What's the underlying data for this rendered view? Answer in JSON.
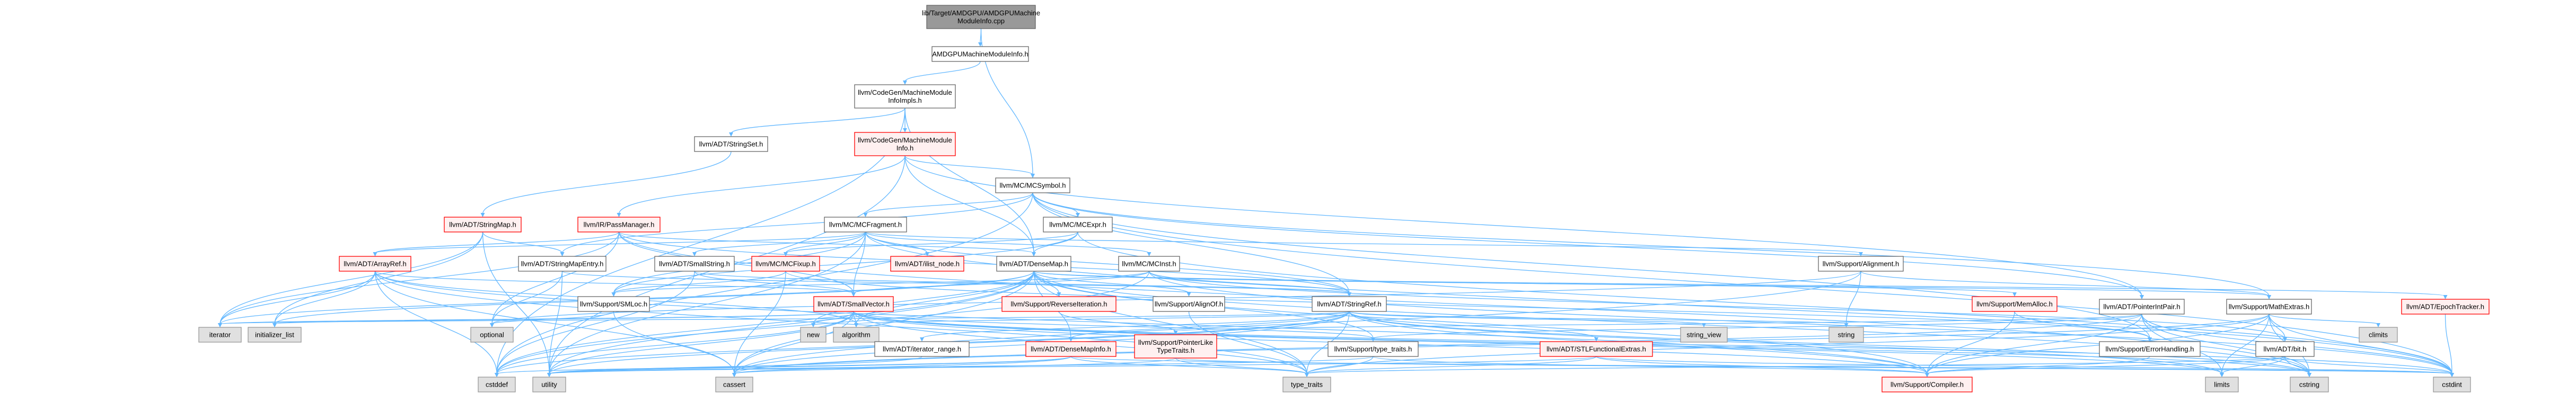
{
  "colors": {
    "edge": "#63b8ff",
    "node_fill": "#ffffff",
    "node_stroke": "#666666",
    "focus_fill": "#999999",
    "red_fill": "#fff0f0",
    "red_stroke": "#ff0000",
    "gray_fill": "#e0e0e0",
    "gray_stroke": "#999999"
  },
  "nodes": [
    {
      "id": "root",
      "lines": [
        "lib/Target/AMDGPU/AMDGPUMachine",
        "ModuleInfo.cpp"
      ],
      "style": "focus"
    },
    {
      "id": "amdgpu_mmi_h",
      "lines": [
        "AMDGPUMachineModuleInfo.h"
      ],
      "style": "normal"
    },
    {
      "id": "mmi_impls",
      "lines": [
        "llvm/CodeGen/MachineModule",
        "InfoImpls.h"
      ],
      "style": "normal"
    },
    {
      "id": "stringset",
      "lines": [
        "llvm/ADT/StringSet.h"
      ],
      "style": "normal"
    },
    {
      "id": "mmi_h",
      "lines": [
        "llvm/CodeGen/MachineModule",
        "Info.h"
      ],
      "style": "red"
    },
    {
      "id": "mcsymbol",
      "lines": [
        "llvm/MC/MCSymbol.h"
      ],
      "style": "normal"
    },
    {
      "id": "stringmap",
      "lines": [
        "llvm/ADT/StringMap.h"
      ],
      "style": "red"
    },
    {
      "id": "passmanager",
      "lines": [
        "llvm/IR/PassManager.h"
      ],
      "style": "red"
    },
    {
      "id": "mcfragment",
      "lines": [
        "llvm/MC/MCFragment.h"
      ],
      "style": "normal"
    },
    {
      "id": "mcexpr",
      "lines": [
        "llvm/MC/MCExpr.h"
      ],
      "style": "normal"
    },
    {
      "id": "arrayref",
      "lines": [
        "llvm/ADT/ArrayRef.h"
      ],
      "style": "red"
    },
    {
      "id": "stringmapentry",
      "lines": [
        "llvm/ADT/StringMapEntry.h"
      ],
      "style": "normal"
    },
    {
      "id": "smallstring",
      "lines": [
        "llvm/ADT/SmallString.h"
      ],
      "style": "normal"
    },
    {
      "id": "mcfixup",
      "lines": [
        "llvm/MC/MCFixup.h"
      ],
      "style": "red"
    },
    {
      "id": "ilist_node",
      "lines": [
        "llvm/ADT/ilist_node.h"
      ],
      "style": "red"
    },
    {
      "id": "densemap",
      "lines": [
        "llvm/ADT/DenseMap.h"
      ],
      "style": "normal"
    },
    {
      "id": "mcinst",
      "lines": [
        "llvm/MC/MCInst.h"
      ],
      "style": "normal"
    },
    {
      "id": "alignment",
      "lines": [
        "llvm/Support/Alignment.h"
      ],
      "style": "normal"
    },
    {
      "id": "pointerintpair",
      "lines": [
        "llvm/ADT/PointerIntPair.h"
      ],
      "style": "normal"
    },
    {
      "id": "mathextras",
      "lines": [
        "llvm/Support/MathExtras.h"
      ],
      "style": "normal"
    },
    {
      "id": "epochtracker",
      "lines": [
        "llvm/ADT/EpochTracker.h"
      ],
      "style": "red"
    },
    {
      "id": "smloc",
      "lines": [
        "llvm/Support/SMLoc.h"
      ],
      "style": "normal"
    },
    {
      "id": "smallvector",
      "lines": [
        "llvm/ADT/SmallVector.h"
      ],
      "style": "red"
    },
    {
      "id": "reverseiteration",
      "lines": [
        "llvm/Support/ReverseIteration.h"
      ],
      "style": "red"
    },
    {
      "id": "alignof",
      "lines": [
        "llvm/Support/AlignOf.h"
      ],
      "style": "normal"
    },
    {
      "id": "stringref",
      "lines": [
        "llvm/ADT/StringRef.h"
      ],
      "style": "normal"
    },
    {
      "id": "memalloc",
      "lines": [
        "llvm/Support/MemAlloc.h"
      ],
      "style": "red"
    },
    {
      "id": "iterator",
      "lines": [
        "iterator"
      ],
      "style": "gray"
    },
    {
      "id": "initializer_list",
      "lines": [
        "initializer_list"
      ],
      "style": "gray"
    },
    {
      "id": "optional",
      "lines": [
        "optional"
      ],
      "style": "gray"
    },
    {
      "id": "new",
      "lines": [
        "new"
      ],
      "style": "gray"
    },
    {
      "id": "algorithm",
      "lines": [
        "algorithm"
      ],
      "style": "gray"
    },
    {
      "id": "iterator_range",
      "lines": [
        "llvm/ADT/iterator_range.h"
      ],
      "style": "normal"
    },
    {
      "id": "densemapinfo",
      "lines": [
        "llvm/ADT/DenseMapInfo.h"
      ],
      "style": "red"
    },
    {
      "id": "pointerlike",
      "lines": [
        "llvm/Support/PointerLike",
        "TypeTraits.h"
      ],
      "style": "red"
    },
    {
      "id": "type_traits_h",
      "lines": [
        "llvm/Support/type_traits.h"
      ],
      "style": "normal"
    },
    {
      "id": "stlfunctional",
      "lines": [
        "llvm/ADT/STLFunctionalExtras.h"
      ],
      "style": "red"
    },
    {
      "id": "string_view",
      "lines": [
        "string_view"
      ],
      "style": "gray"
    },
    {
      "id": "string",
      "lines": [
        "string"
      ],
      "style": "gray"
    },
    {
      "id": "errorhandling",
      "lines": [
        "llvm/Support/ErrorHandling.h"
      ],
      "style": "normal"
    },
    {
      "id": "bit",
      "lines": [
        "llvm/ADT/bit.h"
      ],
      "style": "normal"
    },
    {
      "id": "climits",
      "lines": [
        "climits"
      ],
      "style": "gray"
    },
    {
      "id": "cstddef",
      "lines": [
        "cstddef"
      ],
      "style": "gray"
    },
    {
      "id": "utility",
      "lines": [
        "utility"
      ],
      "style": "gray"
    },
    {
      "id": "cassert",
      "lines": [
        "cassert"
      ],
      "style": "gray"
    },
    {
      "id": "type_traits",
      "lines": [
        "type_traits"
      ],
      "style": "gray"
    },
    {
      "id": "compiler",
      "lines": [
        "llvm/Support/Compiler.h"
      ],
      "style": "red"
    },
    {
      "id": "limits",
      "lines": [
        "limits"
      ],
      "style": "gray"
    },
    {
      "id": "cstring",
      "lines": [
        "cstring"
      ],
      "style": "gray"
    },
    {
      "id": "cstdint",
      "lines": [
        "cstdint"
      ],
      "style": "gray"
    }
  ],
  "edges": [
    [
      "root",
      "amdgpu_mmi_h"
    ],
    [
      "root",
      "mcsymbol"
    ],
    [
      "amdgpu_mmi_h",
      "mmi_impls"
    ],
    [
      "mmi_impls",
      "stringset"
    ],
    [
      "mmi_impls",
      "mmi_h"
    ],
    [
      "mmi_impls",
      "densemap"
    ],
    [
      "mmi_impls",
      "cstddef"
    ],
    [
      "stringset",
      "stringmap"
    ],
    [
      "mmi_h",
      "mcsymbol"
    ],
    [
      "mmi_h",
      "passmanager"
    ],
    [
      "mmi_h",
      "densemap"
    ],
    [
      "mmi_h",
      "pointerintpair"
    ],
    [
      "mmi_h",
      "utility"
    ],
    [
      "mcsymbol",
      "mcfragment"
    ],
    [
      "mcsymbol",
      "mcexpr"
    ],
    [
      "mcsymbol",
      "stringref"
    ],
    [
      "mcsymbol",
      "pointerintpair"
    ],
    [
      "mcsymbol",
      "mathextras"
    ],
    [
      "mcsymbol",
      "stringmapentry"
    ],
    [
      "mcsymbol",
      "errorhandling"
    ],
    [
      "mcsymbol",
      "cstddef"
    ],
    [
      "mcsymbol",
      "cstdint"
    ],
    [
      "stringmap",
      "stringmapentry"
    ],
    [
      "stringmap",
      "iterator"
    ],
    [
      "stringmap",
      "initializer_list"
    ],
    [
      "stringmap",
      "utility"
    ],
    [
      "passmanager",
      "arrayref"
    ],
    [
      "passmanager",
      "smallvector"
    ],
    [
      "passmanager",
      "densemap"
    ],
    [
      "passmanager",
      "stringref"
    ],
    [
      "passmanager",
      "iterator"
    ],
    [
      "passmanager",
      "cstring"
    ],
    [
      "passmanager",
      "optional"
    ],
    [
      "mcfragment",
      "arrayref"
    ],
    [
      "mcfragment",
      "smallstring"
    ],
    [
      "mcfragment",
      "smallvector"
    ],
    [
      "mcfragment",
      "ilist_node"
    ],
    [
      "mcfragment",
      "mcfixup"
    ],
    [
      "mcfragment",
      "mcinst"
    ],
    [
      "mcfragment",
      "alignment"
    ],
    [
      "mcfragment",
      "smloc"
    ],
    [
      "mcfragment",
      "stringref"
    ],
    [
      "mcfragment",
      "cstdint"
    ],
    [
      "mcfragment",
      "utility"
    ],
    [
      "mcexpr",
      "densemap"
    ],
    [
      "mcexpr",
      "smloc"
    ],
    [
      "mcexpr",
      "cstdint"
    ],
    [
      "mcexpr",
      "mcfixup"
    ],
    [
      "arrayref",
      "smallvector"
    ],
    [
      "arrayref",
      "iterator"
    ],
    [
      "arrayref",
      "initializer_list"
    ],
    [
      "arrayref",
      "algorithm"
    ],
    [
      "arrayref",
      "cassert"
    ],
    [
      "arrayref",
      "cstddef"
    ],
    [
      "arrayref",
      "type_traits"
    ],
    [
      "arrayref",
      "compiler"
    ],
    [
      "stringmapentry",
      "stringref"
    ],
    [
      "stringmapentry",
      "optional"
    ],
    [
      "stringmapentry",
      "utility"
    ],
    [
      "smallstring",
      "smallvector"
    ],
    [
      "smallstring",
      "stringref"
    ],
    [
      "smallstring",
      "cstddef"
    ],
    [
      "mcfixup",
      "smloc"
    ],
    [
      "mcfixup",
      "errorhandling"
    ],
    [
      "mcfixup",
      "cassert"
    ],
    [
      "densemap",
      "densemapinfo"
    ],
    [
      "densemap",
      "epochtracker"
    ],
    [
      "densemap",
      "alignof"
    ],
    [
      "densemap",
      "compiler"
    ],
    [
      "densemap",
      "mathextras"
    ],
    [
      "densemap",
      "memalloc"
    ],
    [
      "densemap",
      "reverseiteration"
    ],
    [
      "densemap",
      "type_traits_h"
    ],
    [
      "densemap",
      "algorithm"
    ],
    [
      "densemap",
      "cassert"
    ],
    [
      "densemap",
      "cstddef"
    ],
    [
      "densemap",
      "cstring"
    ],
    [
      "densemap",
      "initializer_list"
    ],
    [
      "densemap",
      "iterator"
    ],
    [
      "densemap",
      "new"
    ],
    [
      "densemap",
      "type_traits"
    ],
    [
      "densemap",
      "utility"
    ],
    [
      "mcinst",
      "smloc"
    ],
    [
      "mcinst",
      "smallvector"
    ],
    [
      "mcinst",
      "stringref"
    ],
    [
      "mcinst",
      "bit"
    ],
    [
      "mcinst",
      "cstddef"
    ],
    [
      "mcinst",
      "cstdint"
    ],
    [
      "alignment",
      "mathextras"
    ],
    [
      "alignment",
      "cassert"
    ],
    [
      "alignment",
      "optional"
    ],
    [
      "alignment",
      "string"
    ],
    [
      "pointerintpair",
      "compiler"
    ],
    [
      "pointerintpair",
      "pointerlike"
    ],
    [
      "pointerintpair",
      "type_traits_h"
    ],
    [
      "pointerintpair",
      "cassert"
    ],
    [
      "pointerintpair",
      "cstdint"
    ],
    [
      "pointerintpair",
      "cstring"
    ],
    [
      "pointerintpair",
      "limits"
    ],
    [
      "mathextras",
      "bit"
    ],
    [
      "mathextras",
      "compiler"
    ],
    [
      "mathextras",
      "cassert"
    ],
    [
      "mathextras",
      "climits"
    ],
    [
      "mathextras",
      "cstdint"
    ],
    [
      "mathextras",
      "cstring"
    ],
    [
      "mathextras",
      "limits"
    ],
    [
      "mathextras",
      "type_traits"
    ],
    [
      "epochtracker",
      "cstdint"
    ],
    [
      "smloc",
      "cassert"
    ],
    [
      "smloc",
      "optional"
    ],
    [
      "smallvector",
      "compiler"
    ],
    [
      "smallvector",
      "type_traits_h"
    ],
    [
      "smallvector",
      "algorithm"
    ],
    [
      "smallvector",
      "cassert"
    ],
    [
      "smallvector",
      "cstddef"
    ],
    [
      "smallvector",
      "cstdint"
    ],
    [
      "smallvector",
      "cstring"
    ],
    [
      "smallvector",
      "functional"
    ],
    [
      "smallvector",
      "initializer_list"
    ],
    [
      "smallvector",
      "iterator"
    ],
    [
      "smallvector",
      "limits"
    ],
    [
      "smallvector",
      "memory"
    ],
    [
      "smallvector",
      "new"
    ],
    [
      "smallvector",
      "type_traits"
    ],
    [
      "smallvector",
      "utility"
    ],
    [
      "reverseiteration",
      "pointerlike"
    ],
    [
      "alignof",
      "type_traits"
    ],
    [
      "stringref",
      "densemapinfo"
    ],
    [
      "stringref",
      "stlfunctional"
    ],
    [
      "stringref",
      "iterator_range"
    ],
    [
      "stringref",
      "compiler"
    ],
    [
      "stringref",
      "algorithm"
    ],
    [
      "stringref",
      "cassert"
    ],
    [
      "stringref",
      "cstddef"
    ],
    [
      "stringref",
      "cstring"
    ],
    [
      "stringref",
      "iterator"
    ],
    [
      "stringref",
      "limits"
    ],
    [
      "stringref",
      "string"
    ],
    [
      "stringref",
      "string_view"
    ],
    [
      "stringref",
      "type_traits"
    ],
    [
      "stringref",
      "utility"
    ],
    [
      "memalloc",
      "compiler"
    ],
    [
      "memalloc",
      "errorhandling"
    ],
    [
      "iterator_range",
      "utility"
    ],
    [
      "densemapinfo",
      "cassert"
    ],
    [
      "densemapinfo",
      "cstddef"
    ],
    [
      "densemapinfo",
      "cstdint"
    ],
    [
      "densemapinfo",
      "type_traits"
    ],
    [
      "densemapinfo",
      "utility"
    ],
    [
      "pointerlike",
      "cassert"
    ],
    [
      "pointerlike",
      "cstdint"
    ],
    [
      "pointerlike",
      "type_traits"
    ],
    [
      "type_traits_h",
      "compiler"
    ],
    [
      "type_traits_h",
      "type_traits"
    ],
    [
      "type_traits_h",
      "utility"
    ],
    [
      "stlfunctional",
      "compiler"
    ],
    [
      "stlfunctional",
      "cstdint"
    ],
    [
      "stlfunctional",
      "type_traits"
    ],
    [
      "stlfunctional",
      "utility"
    ],
    [
      "errorhandling",
      "compiler"
    ],
    [
      "bit",
      "compiler"
    ],
    [
      "bit",
      "cstdint"
    ],
    [
      "bit",
      "limits"
    ],
    [
      "bit",
      "type_traits"
    ],
    [
      "bit",
      "cstring"
    ]
  ]
}
